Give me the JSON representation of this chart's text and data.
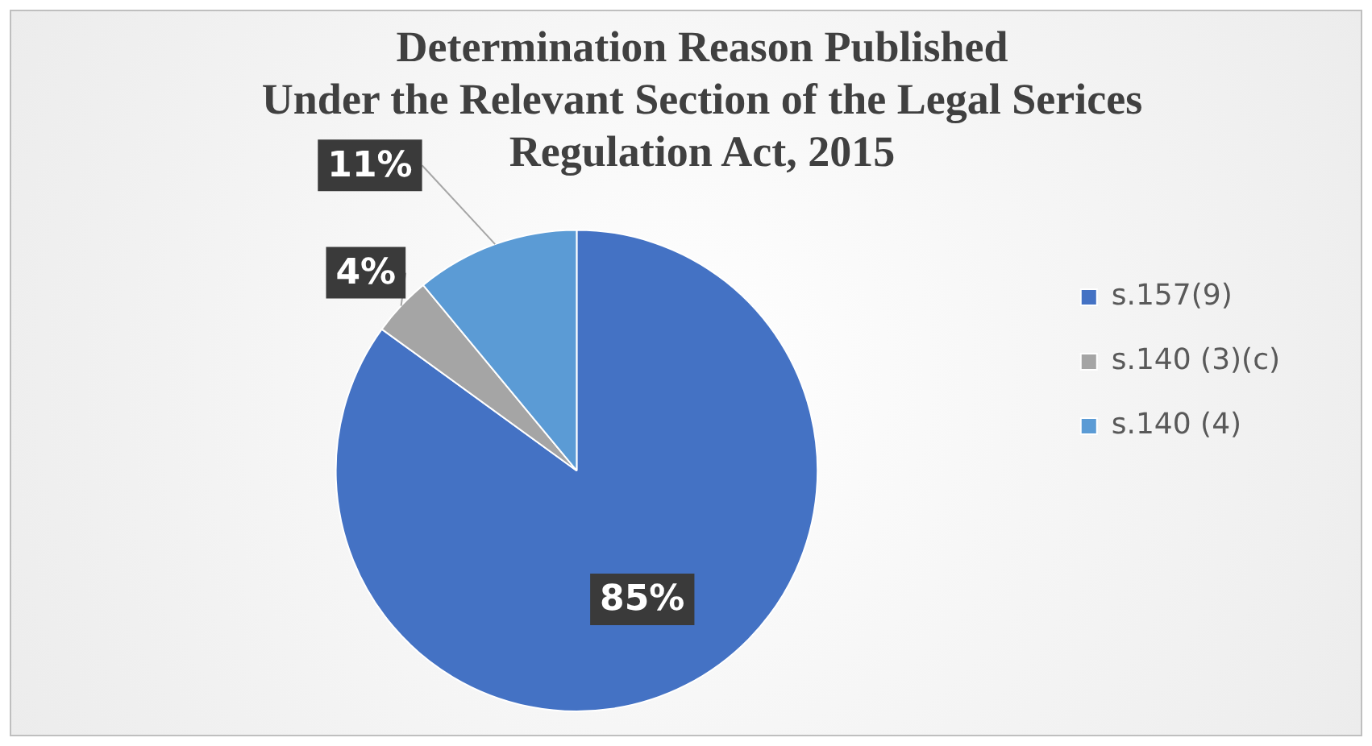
{
  "chart_data": {
    "type": "pie",
    "title": "Determination Reason Published\nUnder the Relevant Section of the Legal Serices\nRegulation Act, 2015",
    "categories": [
      "s.157(9)",
      "s.140 (3)(c)",
      "s.140 (4)"
    ],
    "values": [
      85,
      4,
      11
    ],
    "colors": [
      "#4472c4",
      "#a5a5a5",
      "#5b9bd5"
    ],
    "value_labels": [
      "85%",
      "4%",
      "11%"
    ],
    "legend": "right"
  }
}
